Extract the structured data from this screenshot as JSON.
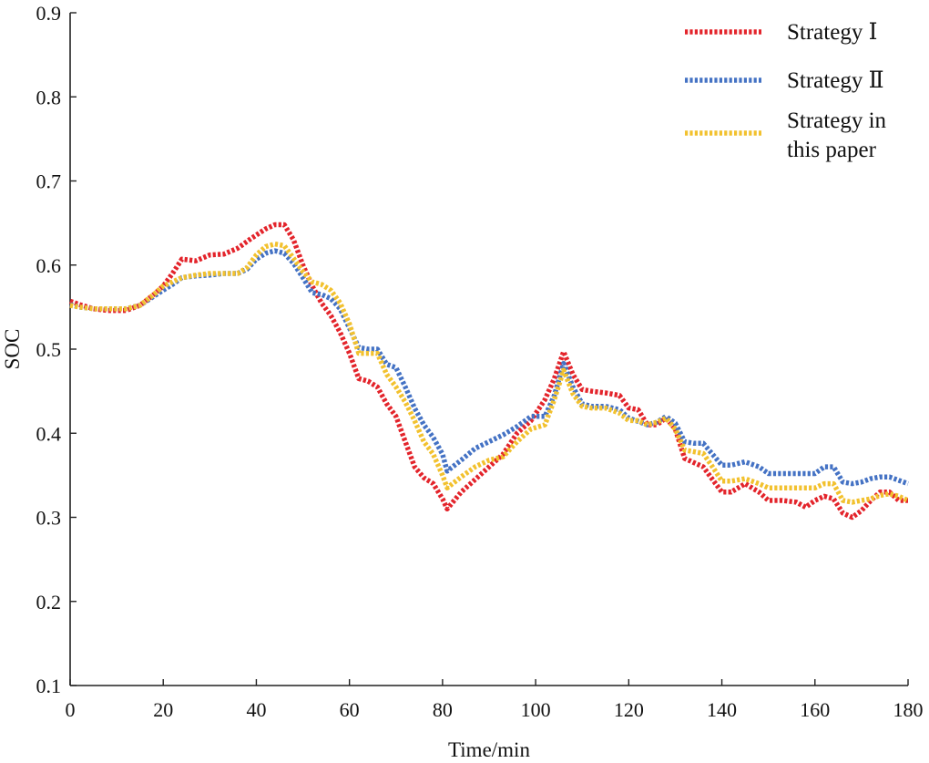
{
  "chart_data": {
    "type": "line",
    "title": "",
    "xlabel": "Time/min",
    "ylabel": "SOC",
    "xlim": [
      0,
      180
    ],
    "ylim": [
      0.1,
      0.9
    ],
    "xticks": [
      "0",
      "20",
      "40",
      "60",
      "80",
      "100",
      "120",
      "140",
      "160",
      "180"
    ],
    "yticks": [
      "0.1",
      "0.2",
      "0.3",
      "0.4",
      "0.5",
      "0.6",
      "0.7",
      "0.8",
      "0.9"
    ],
    "grid": false,
    "legend_position": "top-right",
    "series": [
      {
        "name": "Strategy Ⅰ",
        "color": "#e3242b",
        "x": [
          0,
          2,
          5,
          8,
          12,
          15,
          18,
          20,
          22,
          24,
          27,
          30,
          33,
          36,
          39,
          42,
          44,
          46,
          48,
          50,
          52,
          54,
          56,
          58,
          60,
          62,
          64,
          66,
          68,
          70,
          72,
          74,
          76,
          78,
          80,
          81,
          84,
          87,
          90,
          93,
          96,
          99,
          102,
          104,
          106,
          108,
          110,
          112,
          115,
          118,
          120,
          122,
          124,
          126,
          128,
          130,
          132,
          134,
          136,
          138,
          140,
          142,
          145,
          148,
          150,
          153,
          156,
          158,
          160,
          162,
          164,
          166,
          168,
          170,
          172,
          174,
          176,
          178,
          180
        ],
        "values": [
          0.557,
          0.553,
          0.548,
          0.546,
          0.546,
          0.552,
          0.565,
          0.575,
          0.59,
          0.607,
          0.605,
          0.612,
          0.613,
          0.62,
          0.632,
          0.643,
          0.648,
          0.648,
          0.63,
          0.6,
          0.575,
          0.555,
          0.54,
          0.52,
          0.495,
          0.465,
          0.462,
          0.455,
          0.435,
          0.42,
          0.39,
          0.36,
          0.347,
          0.34,
          0.322,
          0.31,
          0.33,
          0.345,
          0.36,
          0.375,
          0.4,
          0.415,
          0.44,
          0.465,
          0.497,
          0.47,
          0.452,
          0.45,
          0.448,
          0.445,
          0.43,
          0.428,
          0.41,
          0.41,
          0.418,
          0.405,
          0.37,
          0.365,
          0.36,
          0.345,
          0.33,
          0.33,
          0.34,
          0.33,
          0.32,
          0.32,
          0.318,
          0.312,
          0.32,
          0.325,
          0.322,
          0.305,
          0.3,
          0.308,
          0.32,
          0.33,
          0.33,
          0.32,
          0.32
        ]
      },
      {
        "name": "Strategy Ⅱ",
        "color": "#4472c4",
        "x": [
          0,
          2,
          5,
          8,
          12,
          15,
          18,
          20,
          22,
          24,
          27,
          30,
          33,
          36,
          38,
          40,
          42,
          44,
          46,
          48,
          50,
          52,
          54,
          56,
          58,
          60,
          62,
          64,
          66,
          68,
          70,
          72,
          74,
          76,
          78,
          80,
          81,
          84,
          87,
          90,
          93,
          96,
          99,
          102,
          104,
          106,
          108,
          110,
          112,
          115,
          118,
          120,
          122,
          124,
          126,
          128,
          130,
          132,
          134,
          136,
          138,
          140,
          142,
          145,
          148,
          150,
          153,
          156,
          158,
          160,
          162,
          164,
          166,
          168,
          170,
          172,
          174,
          176,
          178,
          180
        ],
        "values": [
          0.553,
          0.55,
          0.548,
          0.548,
          0.548,
          0.552,
          0.563,
          0.57,
          0.577,
          0.585,
          0.587,
          0.588,
          0.59,
          0.59,
          0.595,
          0.607,
          0.614,
          0.617,
          0.614,
          0.602,
          0.585,
          0.567,
          0.565,
          0.56,
          0.548,
          0.525,
          0.502,
          0.5,
          0.5,
          0.482,
          0.478,
          0.455,
          0.43,
          0.41,
          0.395,
          0.375,
          0.355,
          0.368,
          0.382,
          0.39,
          0.398,
          0.408,
          0.42,
          0.42,
          0.445,
          0.483,
          0.455,
          0.435,
          0.432,
          0.432,
          0.428,
          0.418,
          0.414,
          0.41,
          0.413,
          0.42,
          0.412,
          0.39,
          0.388,
          0.388,
          0.375,
          0.362,
          0.362,
          0.366,
          0.36,
          0.352,
          0.352,
          0.352,
          0.352,
          0.352,
          0.36,
          0.36,
          0.342,
          0.34,
          0.342,
          0.346,
          0.348,
          0.348,
          0.344,
          0.34
        ]
      },
      {
        "name": "Strategy in this paper",
        "color": "#f2c12e",
        "x": [
          0,
          2,
          5,
          8,
          12,
          15,
          18,
          20,
          22,
          24,
          27,
          30,
          33,
          36,
          38,
          40,
          42,
          44,
          46,
          48,
          50,
          52,
          54,
          56,
          58,
          60,
          62,
          64,
          66,
          68,
          70,
          72,
          74,
          76,
          78,
          80,
          81,
          84,
          87,
          90,
          93,
          96,
          99,
          102,
          104,
          106,
          108,
          110,
          112,
          115,
          118,
          120,
          122,
          124,
          126,
          128,
          130,
          132,
          134,
          136,
          138,
          140,
          142,
          145,
          148,
          150,
          153,
          156,
          158,
          160,
          162,
          164,
          166,
          168,
          170,
          172,
          174,
          176,
          178,
          180
        ],
        "values": [
          0.552,
          0.55,
          0.548,
          0.548,
          0.548,
          0.552,
          0.565,
          0.575,
          0.58,
          0.585,
          0.588,
          0.59,
          0.59,
          0.59,
          0.597,
          0.612,
          0.622,
          0.625,
          0.623,
          0.608,
          0.592,
          0.58,
          0.577,
          0.57,
          0.555,
          0.53,
          0.495,
          0.495,
          0.495,
          0.47,
          0.455,
          0.437,
          0.415,
          0.39,
          0.375,
          0.35,
          0.335,
          0.348,
          0.36,
          0.368,
          0.372,
          0.39,
          0.405,
          0.41,
          0.44,
          0.475,
          0.447,
          0.432,
          0.43,
          0.43,
          0.424,
          0.415,
          0.415,
          0.41,
          0.413,
          0.418,
          0.405,
          0.38,
          0.378,
          0.376,
          0.36,
          0.343,
          0.343,
          0.346,
          0.34,
          0.335,
          0.335,
          0.335,
          0.335,
          0.335,
          0.34,
          0.34,
          0.32,
          0.318,
          0.32,
          0.322,
          0.326,
          0.328,
          0.325,
          0.32
        ]
      }
    ]
  }
}
